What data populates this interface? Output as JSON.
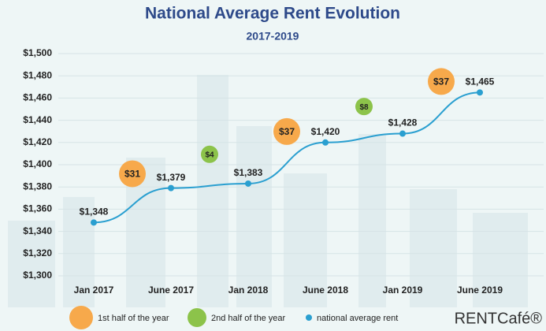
{
  "chart_data": {
    "type": "line",
    "title": "National Average Rent Evolution",
    "subtitle": "2017-2019",
    "categories": [
      "Jan 2017",
      "June 2017",
      "Jan 2018",
      "June 2018",
      "Jan 2019",
      "June 2019"
    ],
    "series": [
      {
        "name": "national average rent",
        "color": "#2a9fd0",
        "values": [
          1348,
          1379,
          1383,
          1420,
          1428,
          1465
        ],
        "value_labels": [
          "$1,348",
          "$1,379",
          "$1,383",
          "$1,420",
          "$1,428",
          "$1,465"
        ]
      }
    ],
    "changes": [
      {
        "name": "1st half of the year",
        "color": "#f7a94b",
        "values": [
          31,
          37,
          37
        ],
        "value_labels": [
          "$31",
          "$37",
          "$37"
        ]
      },
      {
        "name": "2nd half of the year",
        "color": "#8cc34a",
        "values": [
          4,
          8
        ],
        "value_labels": [
          "$4",
          "$8"
        ]
      }
    ],
    "ylim": [
      1300,
      1500
    ],
    "yticks": [
      {
        "value": 1300,
        "label": "$1,300"
      },
      {
        "value": 1320,
        "label": "$1,320"
      },
      {
        "value": 1340,
        "label": "$1,340"
      },
      {
        "value": 1360,
        "label": "$1,360"
      },
      {
        "value": 1380,
        "label": "$1,380"
      },
      {
        "value": 1400,
        "label": "$1,400"
      },
      {
        "value": 1420,
        "label": "$1,420"
      },
      {
        "value": 1440,
        "label": "$1,440"
      },
      {
        "value": 1460,
        "label": "$1,460"
      },
      {
        "value": 1480,
        "label": "$1,480"
      },
      {
        "value": 1500,
        "label": "$1,500"
      }
    ],
    "grid": true,
    "brand": "RENTCafé®"
  }
}
